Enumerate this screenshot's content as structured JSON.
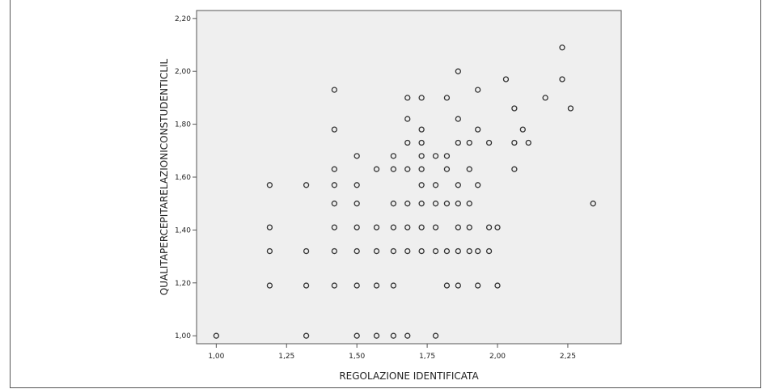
{
  "chart_data": {
    "type": "scatter",
    "xlabel": "REGOLAZIONE IDENTIFICATA",
    "ylabel": "QUALITAPERCEPITARELAZIONICONSTUDENTICLIL",
    "xlim": [
      0.93,
      2.44
    ],
    "ylim": [
      0.97,
      2.23
    ],
    "xticks": [
      1.0,
      1.25,
      1.5,
      1.75,
      2.0,
      2.25
    ],
    "xtick_labels": [
      "1,00",
      "1,25",
      "1,50",
      "1,75",
      "2,00",
      "2,25"
    ],
    "yticks": [
      1.0,
      1.2,
      1.4,
      1.6,
      1.8,
      2.0,
      2.2
    ],
    "ytick_labels": [
      "1,00",
      "1,20",
      "1,40",
      "1,60",
      "1,80",
      "2,00",
      "2,20"
    ],
    "grid": false,
    "plot_background": "#efefef",
    "marker_color": "#333333",
    "x": [
      2.23,
      1.86,
      2.03,
      2.23,
      2.26,
      1.42,
      1.93,
      1.68,
      1.73,
      1.82,
      2.17,
      2.06,
      1.68,
      1.86,
      1.42,
      1.73,
      1.93,
      2.09,
      1.68,
      1.73,
      1.86,
      1.9,
      1.97,
      2.06,
      2.11,
      1.5,
      1.63,
      1.73,
      1.78,
      1.82,
      1.42,
      1.57,
      1.63,
      1.68,
      1.73,
      1.82,
      1.9,
      2.06,
      1.19,
      1.32,
      1.42,
      1.5,
      1.73,
      1.78,
      1.86,
      1.93,
      1.42,
      1.5,
      1.63,
      1.68,
      1.73,
      1.78,
      1.82,
      1.86,
      1.9,
      2.34,
      1.19,
      1.42,
      1.5,
      1.57,
      1.63,
      1.68,
      1.73,
      1.78,
      1.86,
      1.9,
      1.97,
      2.0,
      1.19,
      1.32,
      1.42,
      1.5,
      1.57,
      1.63,
      1.68,
      1.73,
      1.78,
      1.82,
      1.86,
      1.9,
      1.93,
      1.97,
      1.19,
      1.32,
      1.42,
      1.5,
      1.57,
      1.63,
      1.82,
      1.86,
      1.93,
      2.0,
      1.0,
      1.32,
      1.5,
      1.57,
      1.63,
      1.68,
      1.78
    ],
    "y": [
      2.09,
      2.0,
      1.97,
      1.97,
      1.86,
      1.93,
      1.93,
      1.9,
      1.9,
      1.9,
      1.9,
      1.86,
      1.82,
      1.82,
      1.78,
      1.78,
      1.78,
      1.78,
      1.73,
      1.73,
      1.73,
      1.73,
      1.73,
      1.73,
      1.73,
      1.68,
      1.68,
      1.68,
      1.68,
      1.68,
      1.63,
      1.63,
      1.63,
      1.63,
      1.63,
      1.63,
      1.63,
      1.63,
      1.57,
      1.57,
      1.57,
      1.57,
      1.57,
      1.57,
      1.57,
      1.57,
      1.5,
      1.5,
      1.5,
      1.5,
      1.5,
      1.5,
      1.5,
      1.5,
      1.5,
      1.5,
      1.41,
      1.41,
      1.41,
      1.41,
      1.41,
      1.41,
      1.41,
      1.41,
      1.41,
      1.41,
      1.41,
      1.41,
      1.32,
      1.32,
      1.32,
      1.32,
      1.32,
      1.32,
      1.32,
      1.32,
      1.32,
      1.32,
      1.32,
      1.32,
      1.32,
      1.32,
      1.19,
      1.19,
      1.19,
      1.19,
      1.19,
      1.19,
      1.19,
      1.19,
      1.19,
      1.19,
      1.0,
      1.0,
      1.0,
      1.0,
      1.0,
      1.0,
      1.0
    ]
  }
}
